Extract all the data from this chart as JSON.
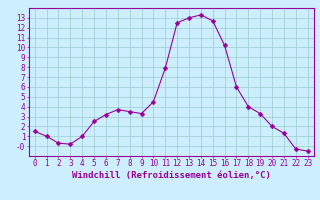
{
  "x": [
    0,
    1,
    2,
    3,
    4,
    5,
    6,
    7,
    8,
    9,
    10,
    11,
    12,
    13,
    14,
    15,
    16,
    17,
    18,
    19,
    20,
    21,
    22,
    23
  ],
  "y": [
    1.5,
    1.0,
    0.3,
    0.2,
    1.0,
    2.5,
    3.2,
    3.7,
    3.5,
    3.3,
    4.5,
    7.9,
    12.5,
    13.0,
    13.3,
    12.7,
    10.2,
    6.0,
    4.0,
    3.3,
    2.0,
    1.3,
    -0.3,
    -0.5
  ],
  "line_color": "#990099",
  "marker": "D",
  "marker_size": 2.5,
  "bg_color": "#cceeff",
  "grid_color": "#99cccc",
  "axis_color": "#990099",
  "xlabel": "Windchill (Refroidissement éolien,°C)",
  "xlim": [
    -0.5,
    23.5
  ],
  "ylim": [
    -1.0,
    14.0
  ],
  "yticks": [
    0,
    1,
    2,
    3,
    4,
    5,
    6,
    7,
    8,
    9,
    10,
    11,
    12,
    13
  ],
  "xticks": [
    0,
    1,
    2,
    3,
    4,
    5,
    6,
    7,
    8,
    9,
    10,
    11,
    12,
    13,
    14,
    15,
    16,
    17,
    18,
    19,
    20,
    21,
    22,
    23
  ],
  "xlabel_fontsize": 6.5,
  "tick_fontsize": 5.5
}
